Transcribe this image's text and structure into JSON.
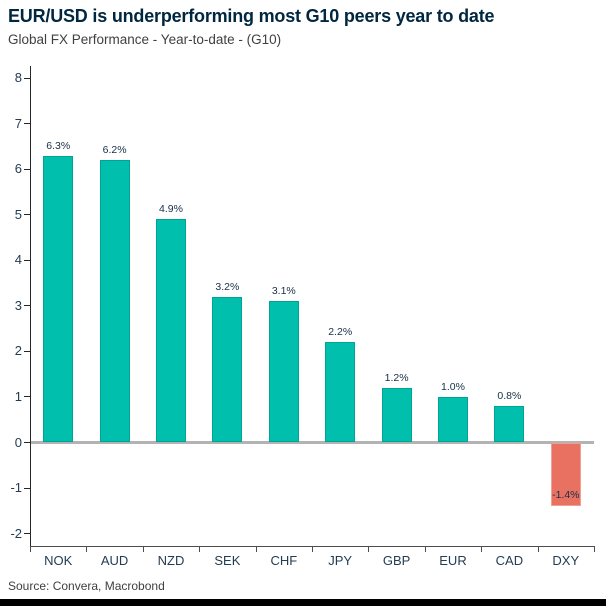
{
  "header": {
    "title": "EUR/USD is underperforming most G10 peers year to date",
    "subtitle": "Global FX Performance - Year-to-date - (G10)"
  },
  "footer": {
    "source": "Source: Convera, Macrobond"
  },
  "colors": {
    "title": "#002640",
    "subtitle": "#404040",
    "positive_bar": "#00c0ad",
    "positive_bar_border": "#00a496",
    "negative_bar": "#e87162",
    "negative_bar_border": "#efa094",
    "value_label": "#16304a",
    "axis_label": "#243c52",
    "axis_line": "#262626",
    "x_axis_line": "#4d4d4d",
    "zero_line": "#b3b3b3",
    "footer_bar": "#000000",
    "background": "#ffffff"
  },
  "chart_data": {
    "type": "bar",
    "title": "EUR/USD is underperforming most G10 peers year to date",
    "subtitle": "Global FX Performance - Year-to-date - (G10)",
    "categories": [
      "NOK",
      "AUD",
      "NZD",
      "SEK",
      "CHF",
      "JPY",
      "GBP",
      "EUR",
      "CAD",
      "DXY"
    ],
    "values": [
      6.3,
      6.2,
      4.9,
      3.2,
      3.1,
      2.2,
      1.2,
      1.0,
      0.8,
      -1.4
    ],
    "value_labels": [
      "6.3%",
      "6.2%",
      "4.9%",
      "3.2%",
      "3.1%",
      "2.2%",
      "1.2%",
      "1.0%",
      "0.8%",
      "-1.4%"
    ],
    "xlabel": "",
    "ylabel": "",
    "ylim": [
      -2,
      8
    ],
    "y_ticks": [
      8,
      7,
      6,
      5,
      4,
      3,
      2,
      1,
      0,
      -1,
      -2
    ],
    "grid": false,
    "legend": false,
    "unit": "%",
    "source": "Source: Convera, Macrobond"
  }
}
